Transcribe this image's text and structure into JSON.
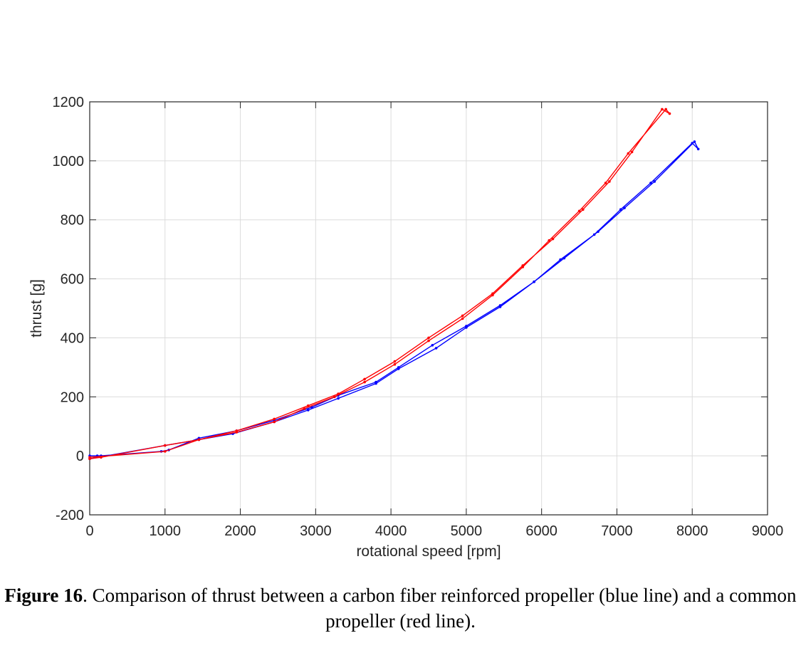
{
  "chart_data": {
    "type": "line",
    "xlabel": "rotational speed [rpm]",
    "ylabel": "thrust [g]",
    "xlim": [
      0,
      9000
    ],
    "ylim": [
      -200,
      1200
    ],
    "xticks": [
      0,
      1000,
      2000,
      3000,
      4000,
      5000,
      6000,
      7000,
      8000,
      9000
    ],
    "yticks": [
      -200,
      0,
      200,
      400,
      600,
      800,
      1000,
      1200
    ],
    "grid": true,
    "series": [
      {
        "color": "#0000ff",
        "x": [
          0,
          100,
          150,
          950,
          1050,
          1450,
          1950,
          2450,
          2950,
          3300,
          3800,
          4100,
          4550,
          5000,
          5450,
          5900,
          6300,
          6750,
          7100,
          7500,
          8030,
          8080,
          8000,
          7450,
          7050,
          6700,
          6250,
          5900,
          5450,
          5000,
          4600,
          4100,
          3800,
          3300,
          2900,
          2450,
          1900,
          1450,
          1000,
          0
        ],
        "y": [
          0,
          0,
          0,
          15,
          20,
          60,
          85,
          120,
          165,
          205,
          250,
          300,
          375,
          440,
          510,
          590,
          670,
          760,
          840,
          930,
          1065,
          1040,
          1060,
          925,
          835,
          750,
          665,
          590,
          505,
          435,
          365,
          295,
          245,
          195,
          155,
          115,
          75,
          55,
          35,
          -10
        ]
      },
      {
        "color": "#ff0000",
        "x": [
          0,
          150,
          1000,
          1450,
          1950,
          2450,
          2900,
          3300,
          3650,
          4050,
          4500,
          4950,
          5350,
          5750,
          6150,
          6550,
          6900,
          7200,
          7600,
          7700,
          7650,
          7150,
          6850,
          6500,
          6100,
          5750,
          5350,
          4950,
          4500,
          4050,
          3650,
          3250,
          2850,
          2450,
          1950,
          1450,
          1000,
          0
        ],
        "y": [
          -10,
          -5,
          35,
          55,
          85,
          125,
          170,
          210,
          260,
          320,
          400,
          475,
          550,
          645,
          735,
          835,
          930,
          1030,
          1175,
          1160,
          1175,
          1025,
          925,
          830,
          730,
          640,
          545,
          465,
          390,
          310,
          250,
          200,
          160,
          115,
          80,
          55,
          15,
          -5
        ]
      }
    ]
  },
  "caption": {
    "fig_num": "Figure 16",
    "text": ". Comparison of thrust between a carbon fiber reinforced propeller (blue line) and a common propeller (red line)."
  }
}
